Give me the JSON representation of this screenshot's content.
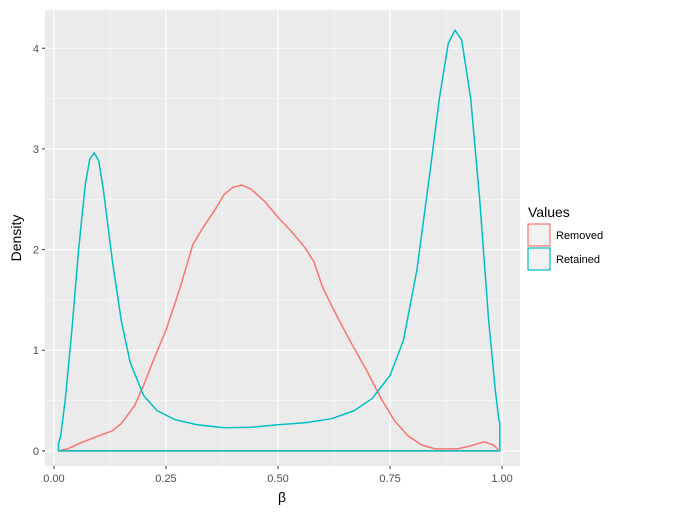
{
  "chart_data": {
    "type": "area",
    "title": "",
    "xlabel": "β",
    "ylabel": "Density",
    "xlim": [
      -0.02,
      1.04
    ],
    "ylim": [
      -0.15,
      4.38
    ],
    "x_ticks": [
      0.0,
      0.25,
      0.5,
      0.75,
      1.0
    ],
    "x_tick_labels": [
      "0.00",
      "0.25",
      "0.50",
      "0.75",
      "1.00"
    ],
    "y_ticks": [
      0,
      1,
      2,
      3,
      4
    ],
    "y_tick_labels": [
      "0",
      "1",
      "2",
      "3",
      "4"
    ],
    "grid": true,
    "legend": {
      "title": "Values",
      "position": "right"
    },
    "series": [
      {
        "name": "Removed",
        "color": "#F8766D",
        "points": [
          [
            0.01,
            0.0
          ],
          [
            0.03,
            0.02
          ],
          [
            0.06,
            0.08
          ],
          [
            0.1,
            0.15
          ],
          [
            0.13,
            0.2
          ],
          [
            0.15,
            0.27
          ],
          [
            0.18,
            0.45
          ],
          [
            0.2,
            0.65
          ],
          [
            0.22,
            0.88
          ],
          [
            0.25,
            1.2
          ],
          [
            0.28,
            1.6
          ],
          [
            0.31,
            2.05
          ],
          [
            0.33,
            2.2
          ],
          [
            0.36,
            2.4
          ],
          [
            0.38,
            2.55
          ],
          [
            0.4,
            2.62
          ],
          [
            0.42,
            2.64
          ],
          [
            0.44,
            2.6
          ],
          [
            0.47,
            2.48
          ],
          [
            0.5,
            2.32
          ],
          [
            0.53,
            2.18
          ],
          [
            0.56,
            2.02
          ],
          [
            0.58,
            1.88
          ],
          [
            0.6,
            1.62
          ],
          [
            0.63,
            1.35
          ],
          [
            0.66,
            1.1
          ],
          [
            0.7,
            0.78
          ],
          [
            0.73,
            0.52
          ],
          [
            0.76,
            0.3
          ],
          [
            0.79,
            0.15
          ],
          [
            0.82,
            0.06
          ],
          [
            0.85,
            0.02
          ],
          [
            0.9,
            0.02
          ],
          [
            0.93,
            0.05
          ],
          [
            0.96,
            0.09
          ],
          [
            0.98,
            0.06
          ],
          [
            0.99,
            0.02
          ]
        ]
      },
      {
        "name": "Retained",
        "color": "#00BFC4",
        "points": [
          [
            0.01,
            0.07
          ],
          [
            0.015,
            0.15
          ],
          [
            0.025,
            0.5
          ],
          [
            0.04,
            1.2
          ],
          [
            0.055,
            2.0
          ],
          [
            0.07,
            2.65
          ],
          [
            0.08,
            2.9
          ],
          [
            0.09,
            2.96
          ],
          [
            0.1,
            2.88
          ],
          [
            0.11,
            2.6
          ],
          [
            0.13,
            1.9
          ],
          [
            0.15,
            1.3
          ],
          [
            0.17,
            0.88
          ],
          [
            0.2,
            0.55
          ],
          [
            0.23,
            0.4
          ],
          [
            0.27,
            0.31
          ],
          [
            0.32,
            0.26
          ],
          [
            0.38,
            0.23
          ],
          [
            0.44,
            0.235
          ],
          [
            0.5,
            0.26
          ],
          [
            0.56,
            0.28
          ],
          [
            0.62,
            0.32
          ],
          [
            0.67,
            0.4
          ],
          [
            0.71,
            0.52
          ],
          [
            0.75,
            0.75
          ],
          [
            0.78,
            1.1
          ],
          [
            0.81,
            1.8
          ],
          [
            0.84,
            2.8
          ],
          [
            0.86,
            3.5
          ],
          [
            0.88,
            4.05
          ],
          [
            0.895,
            4.18
          ],
          [
            0.91,
            4.08
          ],
          [
            0.93,
            3.5
          ],
          [
            0.95,
            2.5
          ],
          [
            0.97,
            1.3
          ],
          [
            0.985,
            0.6
          ],
          [
            0.993,
            0.3
          ],
          [
            0.995,
            0.28
          ]
        ]
      }
    ]
  }
}
